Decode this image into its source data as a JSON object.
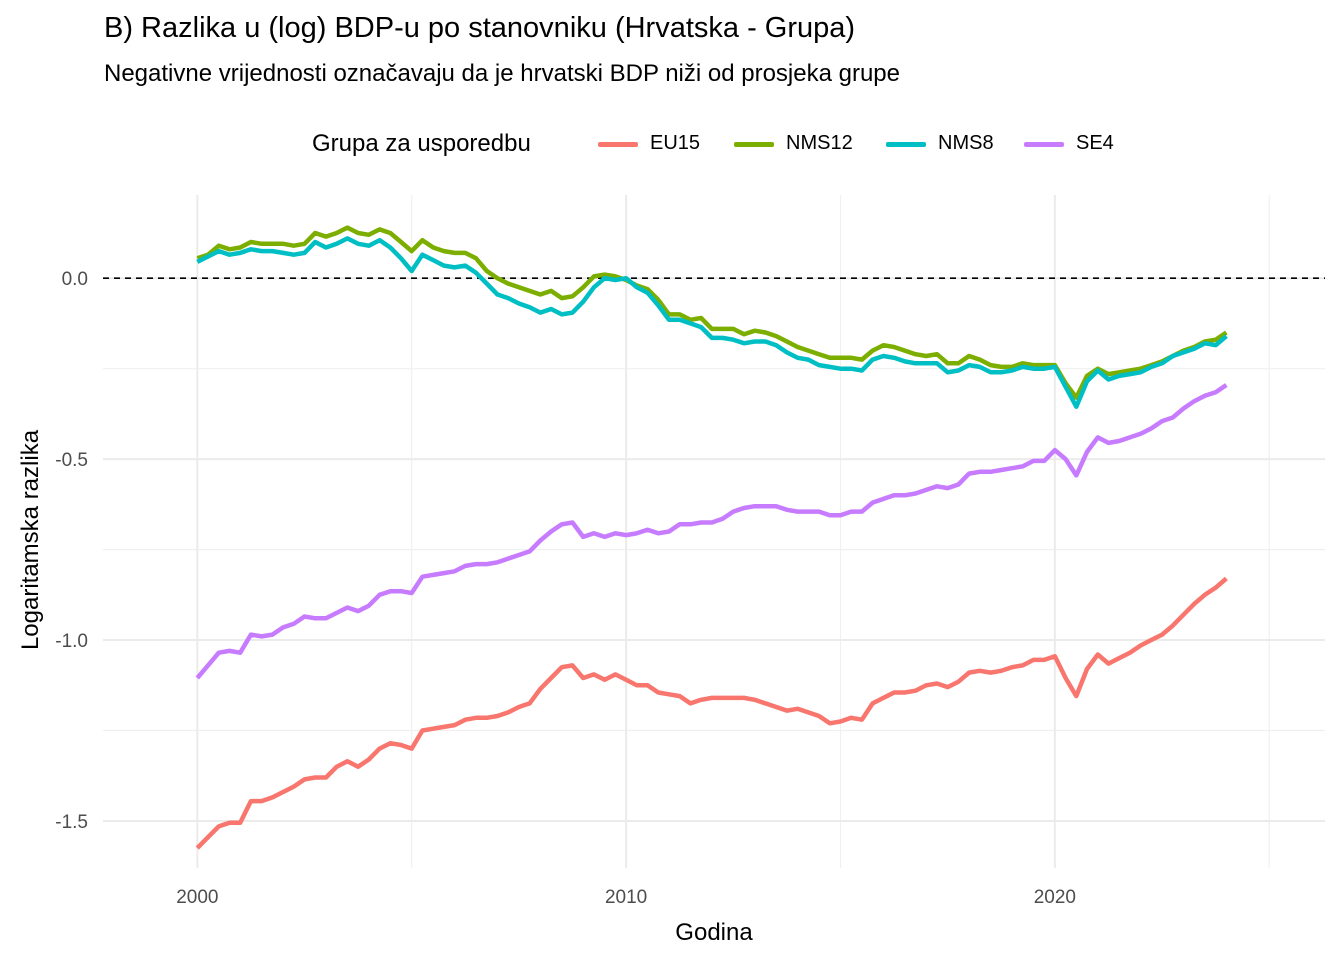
{
  "title": "B) Razlika u (log) BDP-u po stanovniku (Hrvatska - Grupa)",
  "subtitle": "Negativne vrijednosti označavaju da je hrvatski BDP niži od prosjeka grupe",
  "legend": {
    "title": "Grupa za usporedbu",
    "items": [
      {
        "label": "EU15",
        "color": "#F8766D"
      },
      {
        "label": "NMS12",
        "color": "#7CAE00"
      },
      {
        "label": "NMS8",
        "color": "#00BFC4"
      },
      {
        "label": "SE4",
        "color": "#C77CFF"
      }
    ]
  },
  "chart_data": {
    "type": "line",
    "xlabel": "Godina",
    "ylabel": "Logaritamska razlika",
    "xlim": [
      1997.8,
      2026.3
    ],
    "ylim": [
      -1.63,
      0.23
    ],
    "x_ticks": [
      2000,
      2010,
      2020
    ],
    "x_tick_labels": [
      "2000",
      "2010",
      "2020"
    ],
    "y_ticks": [
      0.0,
      -0.5,
      -1.0,
      -1.5
    ],
    "y_tick_labels": [
      "0.0",
      "-0.5",
      "-1.0",
      "-1.5"
    ],
    "reference_line": {
      "y": 0.0,
      "style": "dashed"
    },
    "grid": true,
    "legend_position": "top",
    "x": [
      2000.0,
      2000.25,
      2000.5,
      2000.75,
      2001.0,
      2001.25,
      2001.5,
      2001.75,
      2002.0,
      2002.25,
      2002.5,
      2002.75,
      2003.0,
      2003.25,
      2003.5,
      2003.75,
      2004.0,
      2004.25,
      2004.5,
      2004.75,
      2005.0,
      2005.25,
      2005.5,
      2005.75,
      2006.0,
      2006.25,
      2006.5,
      2006.75,
      2007.0,
      2007.25,
      2007.5,
      2007.75,
      2008.0,
      2008.25,
      2008.5,
      2008.75,
      2009.0,
      2009.25,
      2009.5,
      2009.75,
      2010.0,
      2010.25,
      2010.5,
      2010.75,
      2011.0,
      2011.25,
      2011.5,
      2011.75,
      2012.0,
      2012.25,
      2012.5,
      2012.75,
      2013.0,
      2013.25,
      2013.5,
      2013.75,
      2014.0,
      2014.25,
      2014.5,
      2014.75,
      2015.0,
      2015.25,
      2015.5,
      2015.75,
      2016.0,
      2016.25,
      2016.5,
      2016.75,
      2017.0,
      2017.25,
      2017.5,
      2017.75,
      2018.0,
      2018.25,
      2018.5,
      2018.75,
      2019.0,
      2019.25,
      2019.5,
      2019.75,
      2020.0,
      2020.25,
      2020.5,
      2020.75,
      2021.0,
      2021.25,
      2021.5,
      2021.75,
      2022.0,
      2022.25,
      2022.5,
      2022.75,
      2023.0,
      2023.25,
      2023.5,
      2023.75,
      2024.0
    ],
    "series": [
      {
        "name": "EU15",
        "color": "#F8766D",
        "values": [
          -1.575,
          -1.545,
          -1.515,
          -1.505,
          -1.505,
          -1.445,
          -1.445,
          -1.435,
          -1.42,
          -1.405,
          -1.385,
          -1.38,
          -1.38,
          -1.35,
          -1.335,
          -1.35,
          -1.33,
          -1.3,
          -1.285,
          -1.29,
          -1.3,
          -1.25,
          -1.245,
          -1.24,
          -1.235,
          -1.22,
          -1.215,
          -1.215,
          -1.21,
          -1.2,
          -1.185,
          -1.175,
          -1.135,
          -1.105,
          -1.075,
          -1.07,
          -1.105,
          -1.095,
          -1.11,
          -1.095,
          -1.11,
          -1.125,
          -1.125,
          -1.145,
          -1.15,
          -1.155,
          -1.175,
          -1.165,
          -1.16,
          -1.16,
          -1.16,
          -1.16,
          -1.165,
          -1.175,
          -1.185,
          -1.195,
          -1.19,
          -1.2,
          -1.21,
          -1.23,
          -1.225,
          -1.215,
          -1.22,
          -1.175,
          -1.16,
          -1.145,
          -1.145,
          -1.14,
          -1.125,
          -1.12,
          -1.13,
          -1.115,
          -1.09,
          -1.085,
          -1.09,
          -1.085,
          -1.075,
          -1.07,
          -1.055,
          -1.055,
          -1.045,
          -1.105,
          -1.155,
          -1.08,
          -1.04,
          -1.065,
          -1.05,
          -1.035,
          -1.015,
          -1.0,
          -0.985,
          -0.96,
          -0.93,
          -0.9,
          -0.875,
          -0.855,
          -0.83
        ]
      },
      {
        "name": "NMS12",
        "color": "#7CAE00",
        "values": [
          0.055,
          0.065,
          0.09,
          0.08,
          0.085,
          0.1,
          0.095,
          0.095,
          0.095,
          0.09,
          0.095,
          0.125,
          0.115,
          0.125,
          0.14,
          0.125,
          0.12,
          0.135,
          0.125,
          0.1,
          0.075,
          0.105,
          0.085,
          0.075,
          0.07,
          0.07,
          0.055,
          0.02,
          0.0,
          -0.015,
          -0.025,
          -0.035,
          -0.045,
          -0.035,
          -0.055,
          -0.05,
          -0.025,
          0.005,
          0.01,
          0.005,
          -0.005,
          -0.02,
          -0.03,
          -0.06,
          -0.1,
          -0.1,
          -0.115,
          -0.11,
          -0.14,
          -0.14,
          -0.14,
          -0.155,
          -0.145,
          -0.15,
          -0.16,
          -0.175,
          -0.19,
          -0.2,
          -0.21,
          -0.22,
          -0.22,
          -0.22,
          -0.225,
          -0.2,
          -0.185,
          -0.19,
          -0.2,
          -0.21,
          -0.215,
          -0.21,
          -0.235,
          -0.235,
          -0.215,
          -0.225,
          -0.24,
          -0.245,
          -0.245,
          -0.235,
          -0.24,
          -0.24,
          -0.24,
          -0.29,
          -0.33,
          -0.27,
          -0.25,
          -0.265,
          -0.26,
          -0.255,
          -0.25,
          -0.24,
          -0.23,
          -0.215,
          -0.2,
          -0.19,
          -0.175,
          -0.17,
          -0.15
        ]
      },
      {
        "name": "NMS8",
        "color": "#00BFC4",
        "values": [
          0.045,
          0.06,
          0.075,
          0.065,
          0.07,
          0.08,
          0.075,
          0.075,
          0.07,
          0.065,
          0.07,
          0.1,
          0.085,
          0.095,
          0.11,
          0.095,
          0.09,
          0.105,
          0.085,
          0.055,
          0.02,
          0.065,
          0.05,
          0.035,
          0.03,
          0.035,
          0.015,
          -0.015,
          -0.045,
          -0.055,
          -0.07,
          -0.08,
          -0.095,
          -0.085,
          -0.1,
          -0.095,
          -0.065,
          -0.025,
          0.0,
          -0.005,
          0.0,
          -0.025,
          -0.04,
          -0.075,
          -0.115,
          -0.115,
          -0.125,
          -0.135,
          -0.165,
          -0.165,
          -0.17,
          -0.18,
          -0.175,
          -0.175,
          -0.185,
          -0.205,
          -0.22,
          -0.225,
          -0.24,
          -0.245,
          -0.25,
          -0.25,
          -0.255,
          -0.225,
          -0.215,
          -0.22,
          -0.23,
          -0.235,
          -0.235,
          -0.235,
          -0.26,
          -0.255,
          -0.24,
          -0.245,
          -0.26,
          -0.26,
          -0.255,
          -0.245,
          -0.25,
          -0.25,
          -0.245,
          -0.3,
          -0.355,
          -0.285,
          -0.255,
          -0.28,
          -0.27,
          -0.265,
          -0.26,
          -0.245,
          -0.235,
          -0.215,
          -0.205,
          -0.195,
          -0.18,
          -0.185,
          -0.16
        ]
      },
      {
        "name": "SE4",
        "color": "#C77CFF",
        "values": [
          -1.105,
          -1.07,
          -1.035,
          -1.03,
          -1.035,
          -0.985,
          -0.99,
          -0.985,
          -0.965,
          -0.955,
          -0.935,
          -0.94,
          -0.94,
          -0.925,
          -0.91,
          -0.92,
          -0.905,
          -0.875,
          -0.865,
          -0.865,
          -0.87,
          -0.825,
          -0.82,
          -0.815,
          -0.81,
          -0.795,
          -0.79,
          -0.79,
          -0.785,
          -0.775,
          -0.765,
          -0.755,
          -0.725,
          -0.7,
          -0.68,
          -0.675,
          -0.715,
          -0.705,
          -0.715,
          -0.705,
          -0.71,
          -0.705,
          -0.695,
          -0.705,
          -0.7,
          -0.68,
          -0.68,
          -0.675,
          -0.675,
          -0.665,
          -0.645,
          -0.635,
          -0.63,
          -0.63,
          -0.63,
          -0.64,
          -0.645,
          -0.645,
          -0.645,
          -0.655,
          -0.655,
          -0.645,
          -0.645,
          -0.62,
          -0.61,
          -0.6,
          -0.6,
          -0.595,
          -0.585,
          -0.575,
          -0.58,
          -0.57,
          -0.54,
          -0.535,
          -0.535,
          -0.53,
          -0.525,
          -0.52,
          -0.505,
          -0.505,
          -0.475,
          -0.5,
          -0.545,
          -0.48,
          -0.44,
          -0.455,
          -0.45,
          -0.44,
          -0.43,
          -0.415,
          -0.395,
          -0.385,
          -0.36,
          -0.34,
          -0.325,
          -0.315,
          -0.295
        ]
      }
    ]
  }
}
